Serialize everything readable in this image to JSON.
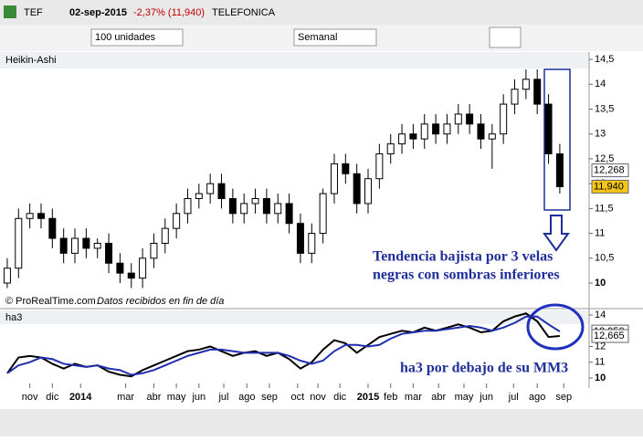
{
  "window": {
    "symbol": "TEF",
    "date": "02-sep-2015",
    "change": "-2,37% (11,940)",
    "name": "TELEFONICA",
    "quantity": "100 unidades",
    "period": "Semanal"
  },
  "chart_data": [
    {
      "type": "candlestick",
      "title": "Heikin-Ashi",
      "x": [
        0,
        2,
        4,
        6,
        8,
        10,
        12,
        14,
        16,
        18,
        20,
        22,
        24,
        26,
        28,
        30,
        32,
        34,
        36,
        38,
        40,
        42,
        44,
        46,
        48,
        50,
        52,
        54,
        56,
        58,
        60,
        62,
        64,
        66,
        68,
        70,
        72,
        74,
        76,
        78,
        80,
        82,
        84,
        86,
        88,
        90,
        92,
        94,
        96,
        98
      ],
      "open": [
        10.0,
        10.3,
        11.3,
        11.4,
        11.3,
        10.9,
        10.6,
        10.9,
        10.7,
        10.8,
        10.4,
        10.2,
        10.1,
        10.5,
        10.8,
        11.1,
        11.4,
        11.7,
        11.8,
        12.0,
        11.7,
        11.4,
        11.6,
        11.7,
        11.4,
        11.6,
        11.2,
        10.6,
        11.0,
        11.8,
        12.4,
        12.2,
        11.6,
        12.1,
        12.6,
        12.8,
        13.0,
        12.9,
        13.2,
        13.0,
        13.2,
        13.4,
        13.2,
        12.9,
        13.0,
        13.6,
        13.9,
        14.1,
        13.6,
        12.6
      ],
      "high": [
        10.5,
        11.5,
        11.6,
        11.6,
        11.5,
        11.1,
        11.1,
        11.1,
        10.9,
        11.0,
        10.6,
        10.4,
        10.7,
        11.0,
        11.3,
        11.6,
        11.9,
        12.0,
        12.2,
        12.2,
        11.9,
        11.8,
        11.9,
        11.9,
        11.8,
        11.8,
        11.4,
        11.2,
        11.9,
        12.6,
        12.6,
        12.4,
        12.3,
        12.8,
        13.0,
        13.2,
        13.2,
        13.4,
        13.4,
        13.4,
        13.6,
        13.6,
        13.4,
        13.2,
        13.8,
        14.1,
        14.3,
        14.3,
        13.8,
        12.8
      ],
      "low": [
        9.9,
        10.1,
        11.1,
        11.1,
        10.7,
        10.4,
        10.4,
        10.5,
        10.5,
        10.2,
        10.0,
        9.9,
        9.9,
        10.3,
        10.6,
        10.9,
        11.2,
        11.5,
        11.6,
        11.5,
        11.2,
        11.2,
        11.4,
        11.2,
        11.2,
        11.0,
        10.4,
        10.4,
        10.8,
        11.6,
        12.0,
        11.4,
        11.4,
        11.9,
        12.4,
        12.6,
        12.7,
        12.7,
        12.8,
        12.8,
        13.0,
        13.0,
        12.7,
        12.3,
        12.8,
        13.4,
        13.7,
        13.4,
        12.4,
        11.8
      ],
      "close": [
        10.3,
        11.3,
        11.4,
        11.3,
        10.9,
        10.6,
        10.9,
        10.7,
        10.8,
        10.4,
        10.2,
        10.1,
        10.5,
        10.8,
        11.1,
        11.4,
        11.7,
        11.8,
        12.0,
        11.7,
        11.4,
        11.6,
        11.7,
        11.4,
        11.6,
        11.2,
        10.6,
        11.0,
        11.8,
        12.4,
        12.2,
        11.6,
        12.1,
        12.6,
        12.8,
        13.0,
        12.9,
        13.2,
        13.0,
        13.2,
        13.4,
        13.2,
        12.9,
        13.0,
        13.6,
        13.9,
        14.1,
        13.6,
        12.6,
        11.94
      ],
      "xlim": [
        -0.8,
        103.2
      ],
      "ylim": [
        9.78,
        14.63
      ],
      "yticks": [
        {
          "value": 14.5,
          "label": "14,5"
        },
        14,
        {
          "value": 13.5,
          "label": "13,5"
        },
        13,
        {
          "value": 12.5,
          "label": "12,5"
        },
        12,
        {
          "value": 11.5,
          "label": "11,5"
        },
        11,
        {
          "value": 10.5,
          "label": "10,5"
        },
        10
      ],
      "price_tags": [
        {
          "value": 12.268,
          "label": "12,268"
        },
        {
          "value": 11.94,
          "label": "11,940"
        }
      ],
      "annotation": [
        "Tendencia bajista por 3 velas",
        "negras con sombras inferiores"
      ],
      "footer": [
        "© ProRealTime.com",
        "Datos recibidos en fin de día"
      ]
    },
    {
      "type": "line",
      "title": "ha3",
      "x": [
        0,
        2,
        4,
        6,
        8,
        10,
        12,
        14,
        16,
        18,
        20,
        22,
        24,
        26,
        28,
        30,
        32,
        34,
        36,
        38,
        40,
        42,
        44,
        46,
        48,
        50,
        52,
        54,
        56,
        58,
        60,
        62,
        64,
        66,
        68,
        70,
        72,
        74,
        76,
        78,
        80,
        82,
        84,
        86,
        88,
        90,
        92,
        94,
        96,
        98
      ],
      "series": [
        {
          "color": "#000000",
          "values": [
            10.3,
            11.3,
            11.4,
            11.3,
            10.9,
            10.6,
            10.9,
            10.7,
            10.8,
            10.4,
            10.2,
            10.1,
            10.5,
            10.8,
            11.1,
            11.4,
            11.7,
            11.8,
            12.0,
            11.7,
            11.4,
            11.6,
            11.7,
            11.4,
            11.6,
            11.2,
            10.6,
            11.0,
            11.8,
            12.4,
            12.2,
            11.6,
            12.1,
            12.6,
            12.8,
            13.0,
            12.9,
            13.2,
            13.0,
            13.2,
            13.4,
            13.2,
            12.9,
            13.0,
            13.6,
            13.9,
            14.1,
            13.6,
            12.6,
            12.665
          ]
        },
        {
          "color": "#1f2fb0",
          "values": [
            10.3,
            10.8,
            11.0,
            11.3,
            11.2,
            10.9,
            10.8,
            10.7,
            10.8,
            10.6,
            10.5,
            10.2,
            10.3,
            10.5,
            10.8,
            11.1,
            11.4,
            11.6,
            11.8,
            11.8,
            11.7,
            11.6,
            11.6,
            11.6,
            11.6,
            11.4,
            11.1,
            10.9,
            11.1,
            11.7,
            12.1,
            12.1,
            12.0,
            12.1,
            12.5,
            12.8,
            12.9,
            13.0,
            13.0,
            13.1,
            13.2,
            13.3,
            13.2,
            13.0,
            13.2,
            13.5,
            13.9,
            13.9,
            13.4,
            12.95
          ]
        }
      ],
      "xlim": [
        -0.8,
        103.2
      ],
      "ylim": [
        9.65,
        14.29
      ],
      "yticks": [
        14,
        12,
        11,
        10
      ],
      "price_tags": [
        {
          "value": 12.95,
          "label": "12,950"
        },
        {
          "value": 12.665,
          "label": "12,665"
        }
      ],
      "xticks": [
        {
          "value": 4,
          "label": "nov"
        },
        {
          "value": 8,
          "label": "dic"
        },
        {
          "value": 13,
          "label": "2014"
        },
        {
          "value": 21,
          "label": "mar"
        },
        {
          "value": 26,
          "label": "abr"
        },
        {
          "value": 30,
          "label": "may"
        },
        {
          "value": 34,
          "label": "jun"
        },
        {
          "value": 38.4,
          "label": "jul"
        },
        {
          "value": 42.5,
          "label": "ago"
        },
        {
          "value": 46.5,
          "label": "sep"
        },
        {
          "value": 51.5,
          "label": "oct"
        },
        {
          "value": 55.1,
          "label": "nov"
        },
        {
          "value": 59,
          "label": "dic"
        },
        {
          "value": 64,
          "label": "2015"
        },
        {
          "value": 68,
          "label": "feb"
        },
        {
          "value": 72,
          "label": "mar"
        },
        {
          "value": 76.5,
          "label": "abr"
        },
        {
          "value": 81,
          "label": "may"
        },
        {
          "value": 85,
          "label": "jun"
        },
        {
          "value": 89.8,
          "label": "jul"
        },
        {
          "value": 94,
          "label": "ago"
        },
        {
          "value": 98.7,
          "label": "sep"
        }
      ],
      "annotation": "ha3 por debajo de su MM3"
    }
  ]
}
